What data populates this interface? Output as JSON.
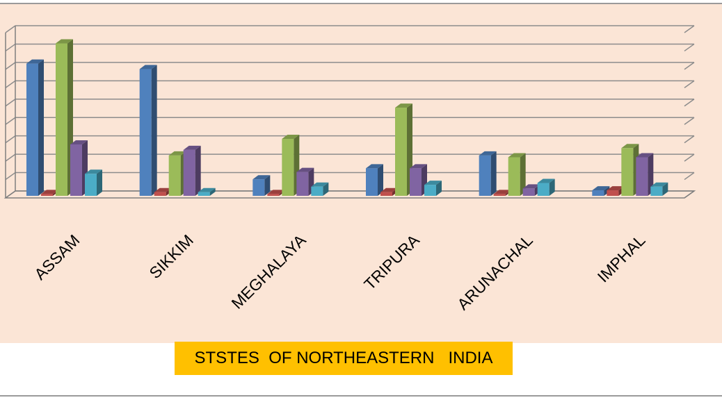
{
  "chart_data": {
    "type": "bar",
    "style": "3d-clustered-column",
    "categories": [
      "ASSAM",
      "SIKKIM",
      "MEGHALAYA",
      "TRIPURA",
      "ARUNACHAL",
      "IMPHAL"
    ],
    "series": [
      {
        "values": [
          7.2,
          6.9,
          0.9,
          1.5,
          2.2,
          0.3
        ],
        "color": "#4f81bd"
      },
      {
        "values": [
          0.1,
          0.2,
          0.1,
          0.2,
          0.1,
          0.3
        ],
        "color": "#c0504d"
      },
      {
        "values": [
          8.3,
          2.2,
          3.1,
          4.8,
          2.1,
          2.6
        ],
        "color": "#9bbb59"
      },
      {
        "values": [
          2.8,
          2.5,
          1.3,
          1.5,
          0.4,
          2.1
        ],
        "color": "#8064a2"
      },
      {
        "values": [
          1.2,
          0.2,
          0.5,
          0.6,
          0.7,
          0.5
        ],
        "color": "#4bacc6"
      }
    ],
    "ylim": [
      0,
      9
    ],
    "grid": true,
    "xlabel": "STSTES  OF NORTHEASTERN   INDIA",
    "ylabel": "",
    "title": ""
  }
}
